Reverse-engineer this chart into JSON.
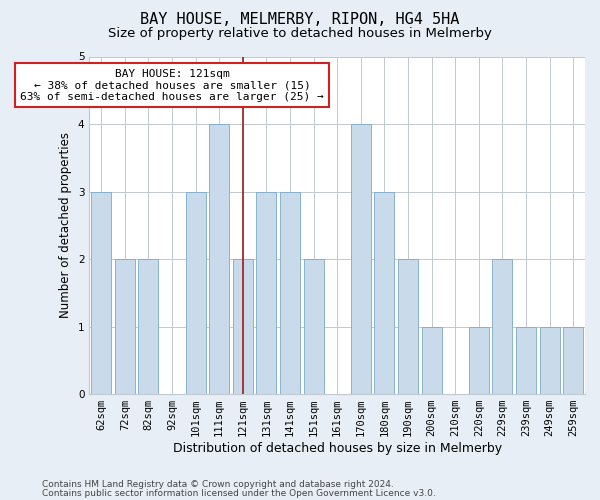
{
  "title": "BAY HOUSE, MELMERBY, RIPON, HG4 5HA",
  "subtitle": "Size of property relative to detached houses in Melmerby",
  "xlabel": "Distribution of detached houses by size in Melmerby",
  "ylabel": "Number of detached properties",
  "categories": [
    "62sqm",
    "72sqm",
    "82sqm",
    "92sqm",
    "101sqm",
    "111sqm",
    "121sqm",
    "131sqm",
    "141sqm",
    "151sqm",
    "161sqm",
    "170sqm",
    "180sqm",
    "190sqm",
    "200sqm",
    "210sqm",
    "220sqm",
    "229sqm",
    "239sqm",
    "249sqm",
    "259sqm"
  ],
  "values": [
    3,
    2,
    2,
    0,
    3,
    4,
    2,
    3,
    3,
    2,
    0,
    4,
    3,
    2,
    1,
    0,
    1,
    2,
    1,
    1,
    1
  ],
  "highlight_index": 6,
  "bar_color": "#c9daea",
  "bar_edge_color": "#7aaac8",
  "highlight_line_color": "#9b1c1c",
  "annotation_text": "BAY HOUSE: 121sqm\n← 38% of detached houses are smaller (15)\n63% of semi-detached houses are larger (25) →",
  "annotation_box_color": "white",
  "annotation_box_edge_color": "#cc2222",
  "ylim": [
    0,
    5
  ],
  "yticks": [
    0,
    1,
    2,
    3,
    4,
    5
  ],
  "footer_line1": "Contains HM Land Registry data © Crown copyright and database right 2024.",
  "footer_line2": "Contains public sector information licensed under the Open Government Licence v3.0.",
  "background_color": "#e8eef5",
  "plot_bg_color": "#ffffff",
  "grid_color": "#c0c8d0",
  "title_fontsize": 11,
  "subtitle_fontsize": 9.5,
  "xlabel_fontsize": 9,
  "ylabel_fontsize": 8.5,
  "tick_fontsize": 7.5,
  "annotation_fontsize": 8,
  "footer_fontsize": 6.5
}
